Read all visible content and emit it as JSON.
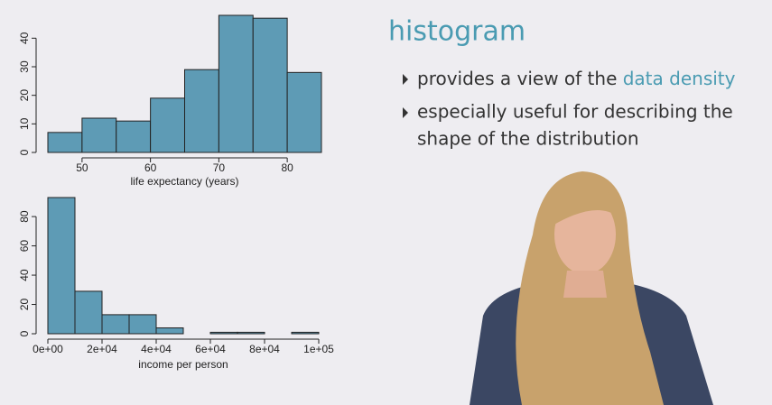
{
  "slide": {
    "title": "histogram",
    "bullets": [
      {
        "text": "provides a view of the ",
        "highlight": "data density"
      },
      {
        "lines": [
          "especially useful for describing the",
          "shape of the distribution"
        ]
      }
    ]
  },
  "chart_data": [
    {
      "type": "histogram",
      "xlabel": "life expectancy (years)",
      "bins": [
        45,
        50,
        55,
        60,
        65,
        70,
        75,
        80,
        85
      ],
      "values": [
        7,
        12,
        11,
        19,
        29,
        48,
        47,
        28
      ],
      "color": "#5e9bb5",
      "xlim": [
        45,
        85
      ],
      "xticks": [
        50,
        60,
        70,
        80
      ],
      "ylim": [
        0,
        48
      ],
      "yticks": [
        0,
        10,
        20,
        30,
        40
      ]
    },
    {
      "type": "histogram",
      "xlabel": "income per person",
      "bins": [
        0,
        10000,
        20000,
        30000,
        40000,
        50000,
        60000,
        70000,
        80000,
        90000,
        100000
      ],
      "values": [
        93,
        29,
        13,
        13,
        4,
        0,
        1,
        1,
        0,
        1
      ],
      "color": "#5e9bb5",
      "xlim": [
        0,
        100000
      ],
      "xticks": [
        {
          "value": 0,
          "label": "0e+00"
        },
        {
          "value": 20000,
          "label": "2e+04"
        },
        {
          "value": 40000,
          "label": "4e+04"
        },
        {
          "value": 60000,
          "label": "6e+04"
        },
        {
          "value": 80000,
          "label": "8e+04"
        },
        {
          "value": 100000,
          "label": "1e+05"
        }
      ],
      "ylim": [
        0,
        93
      ],
      "yticks": [
        0,
        20,
        40,
        60,
        80
      ]
    }
  ]
}
